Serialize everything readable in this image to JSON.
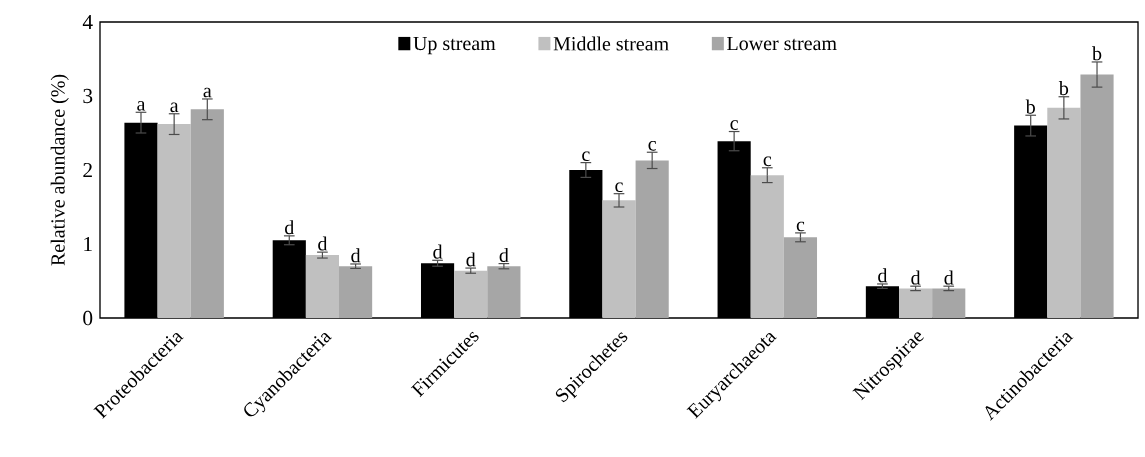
{
  "chart_data": {
    "type": "bar",
    "ylabel": "Relative abundance (%)",
    "categories": [
      "Proteobacteria",
      "Cyanobacteria",
      "Firmicutes",
      "Spirochetes",
      "Euryarchaeota",
      "Nitrospirae",
      "Actinobacteria"
    ],
    "series": [
      {
        "name": "Up stream",
        "color": "#000000",
        "values": [
          2.64,
          1.05,
          0.74,
          2.0,
          2.39,
          0.43,
          2.6
        ],
        "errors": [
          0.14,
          0.06,
          0.04,
          0.1,
          0.13,
          0.03,
          0.14
        ],
        "value_labels": [
          "a",
          "d",
          "d",
          "c",
          "c",
          "d",
          "b"
        ]
      },
      {
        "name": "Middle stream",
        "color": "#c0c0c0",
        "values": [
          2.62,
          0.85,
          0.64,
          1.59,
          1.93,
          0.4,
          2.84
        ],
        "errors": [
          0.14,
          0.04,
          0.035,
          0.09,
          0.1,
          0.03,
          0.15
        ],
        "value_labels": [
          "a",
          "d",
          "d",
          "c",
          "c",
          "d",
          "b"
        ]
      },
      {
        "name": "Lower stream",
        "color": "#a6a6a6",
        "values": [
          2.82,
          0.7,
          0.7,
          2.13,
          1.09,
          0.4,
          3.29
        ],
        "errors": [
          0.14,
          0.03,
          0.035,
          0.11,
          0.06,
          0.03,
          0.17
        ],
        "value_labels": [
          "a",
          "d",
          "d",
          "c",
          "c",
          "d",
          "b"
        ]
      }
    ],
    "ylim": [
      0,
      4
    ],
    "yticks": [
      0,
      1,
      2,
      3,
      4
    ],
    "legend": "top",
    "grid": false
  }
}
